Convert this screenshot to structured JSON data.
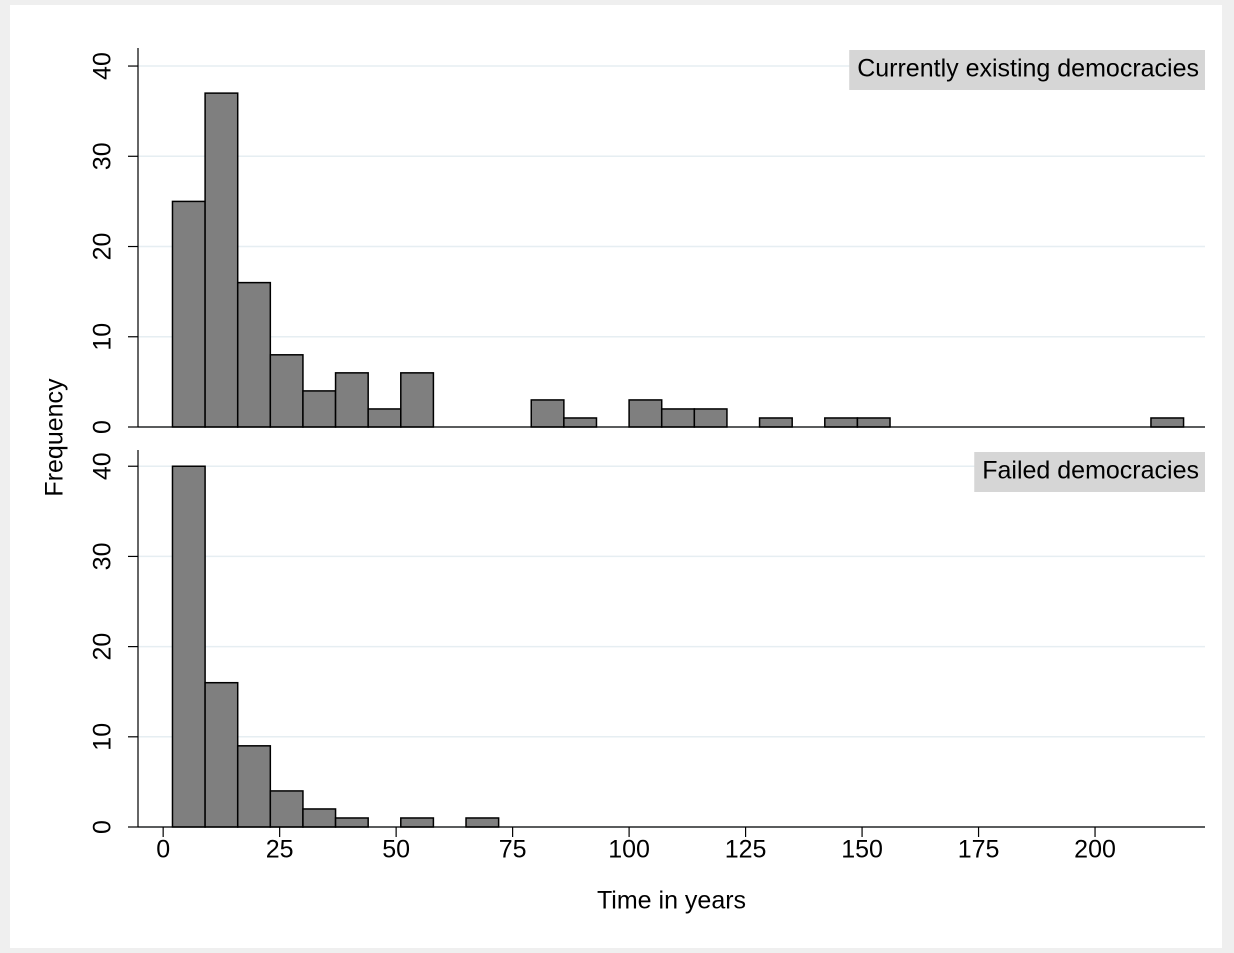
{
  "chart_data": [
    {
      "type": "histogram",
      "title": "Currently existing democracies",
      "y_label": "Frequency",
      "bins": [
        2,
        9,
        16,
        23,
        30,
        37,
        44,
        51,
        58,
        65,
        72,
        79,
        86,
        93,
        100,
        107,
        114,
        121,
        128,
        135,
        142,
        149,
        156,
        163,
        170,
        177,
        184,
        191,
        198,
        205,
        212,
        219
      ],
      "counts": [
        25,
        37,
        16,
        8,
        4,
        6,
        2,
        6,
        0,
        0,
        0,
        3,
        1,
        0,
        3,
        2,
        2,
        0,
        1,
        0,
        1,
        1,
        0,
        0,
        0,
        0,
        0,
        0,
        0,
        0,
        1
      ],
      "color": "#7f7f7f",
      "xlim": [
        -5.4,
        223.6
      ],
      "ylim": [
        0,
        42
      ],
      "yticks": [
        0,
        10,
        20,
        30,
        40
      ],
      "grid": true
    },
    {
      "type": "histogram",
      "title": "Failed democracies",
      "x_label": "Time in years",
      "bins": [
        2,
        9,
        16,
        23,
        30,
        37,
        44,
        51,
        58,
        65,
        72
      ],
      "counts": [
        40,
        16,
        9,
        4,
        2,
        1,
        0,
        1,
        0,
        1
      ],
      "color": "#7f7f7f",
      "xlim": [
        -5.4,
        223.6
      ],
      "xticks": [
        0,
        25,
        50,
        75,
        100,
        125,
        150,
        175,
        200
      ],
      "ylim": [
        0,
        41.8
      ],
      "yticks": [
        0,
        10,
        20,
        30,
        40
      ],
      "grid": true
    }
  ]
}
